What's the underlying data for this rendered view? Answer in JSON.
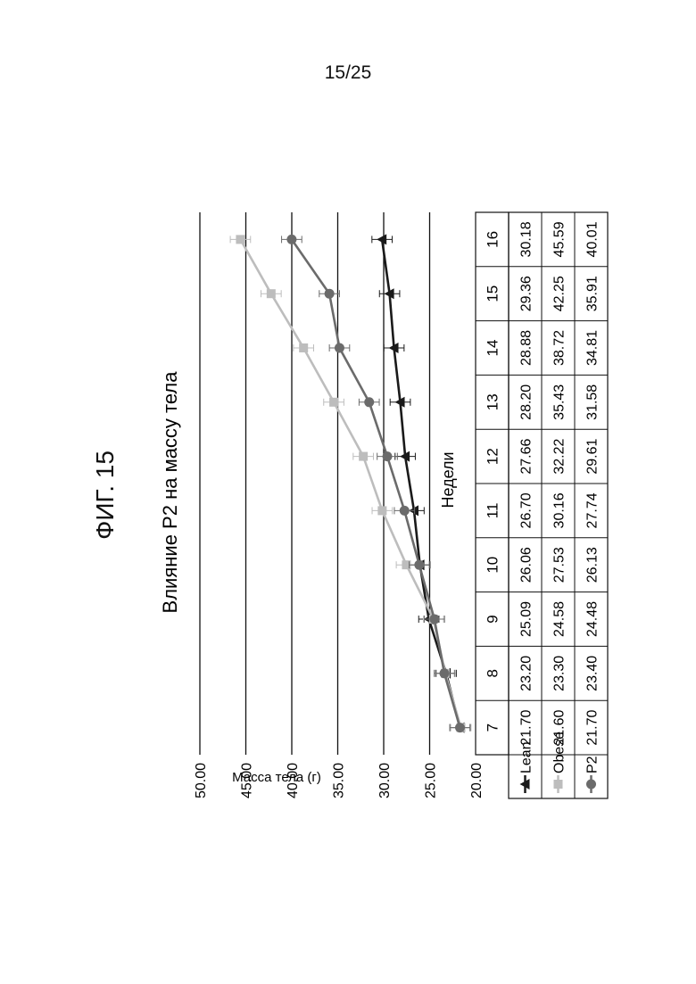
{
  "page": {
    "number": "15/25",
    "figure": "ФИГ. 15"
  },
  "chart_data": {
    "type": "line",
    "title": "Влияние P2 на массу тела",
    "xlabel": "Недели",
    "ylabel": "Масса тела (г)",
    "ylim": [
      20,
      50
    ],
    "yticks": [
      "20.00",
      "25.00",
      "30.00",
      "35.00",
      "40.00",
      "45.00",
      "50.00"
    ],
    "grid": true,
    "legend_position": "left of data table",
    "categories": [
      "7",
      "8",
      "9",
      "10",
      "11",
      "12",
      "13",
      "14",
      "15",
      "16"
    ],
    "series": [
      {
        "name": "Lean",
        "marker": "triangle",
        "color": "#1a1a1a",
        "values": [
          21.7,
          23.2,
          25.09,
          26.06,
          26.7,
          27.66,
          28.2,
          28.88,
          29.36,
          30.18
        ],
        "labels": [
          "21.70",
          "23.20",
          "25.09",
          "26.06",
          "26.70",
          "27.66",
          "28.20",
          "28.88",
          "29.36",
          "30.18"
        ]
      },
      {
        "name": "Obese",
        "marker": "square",
        "color": "#bdbdbd",
        "values": [
          21.6,
          23.3,
          24.58,
          27.53,
          30.16,
          32.22,
          35.43,
          38.72,
          42.25,
          45.59
        ],
        "labels": [
          "21.60",
          "23.30",
          "24.58",
          "27.53",
          "30.16",
          "32.22",
          "35.43",
          "38.72",
          "42.25",
          "45.59"
        ]
      },
      {
        "name": "P2",
        "marker": "circle",
        "color": "#6b6b6b",
        "values": [
          21.7,
          23.4,
          24.48,
          26.13,
          27.74,
          29.61,
          31.58,
          34.81,
          35.91,
          40.01
        ],
        "labels": [
          "21.70",
          "23.40",
          "24.48",
          "26.13",
          "27.74",
          "29.61",
          "31.58",
          "34.81",
          "35.91",
          "40.01"
        ]
      }
    ]
  }
}
